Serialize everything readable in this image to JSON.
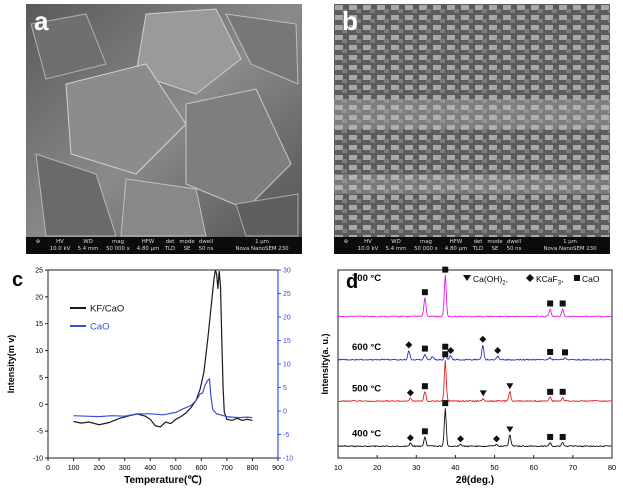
{
  "panels": {
    "a": {
      "letter": "a",
      "infobar": {
        "columns": [
          {
            "head": "HV",
            "val": "10.0 kV"
          },
          {
            "head": "WD",
            "val": "5.4 mm"
          },
          {
            "head": "mag",
            "val": "50 000 x"
          },
          {
            "head": "HFW",
            "val": "4.80 µm"
          },
          {
            "head": "det",
            "val": "TLD"
          },
          {
            "head": "mode",
            "val": "SE"
          },
          {
            "head": "dwell",
            "val": "50 ns"
          }
        ],
        "scale_label": "1 µm",
        "instrument": "Nova NanoSEM 230"
      }
    },
    "b": {
      "letter": "b",
      "infobar": {
        "columns": [
          {
            "head": "HV",
            "val": "10.0 kV"
          },
          {
            "head": "WD",
            "val": "5.4 mm"
          },
          {
            "head": "mag",
            "val": "50 000 x"
          },
          {
            "head": "HFW",
            "val": "4.80 µm"
          },
          {
            "head": "det",
            "val": "TLD"
          },
          {
            "head": "mode",
            "val": "SE"
          },
          {
            "head": "dwell",
            "val": "50 ns"
          }
        ],
        "scale_label": "1 µm",
        "instrument": "Nova NanoSEM 230"
      }
    }
  },
  "colors": {
    "kf_cao": "#1a1a1a",
    "cao": "#3a4fd8",
    "right_axis": "#3a4fd8",
    "xrd_700": "#e21be6",
    "xrd_600": "#2030d0",
    "xrd_500": "#e02020",
    "xrd_400": "#111111"
  },
  "chart_data": [
    {
      "panel": "c",
      "type": "line",
      "letter": "c",
      "xlabel": "Temperature(℃)",
      "ylabel": "Intensity(m v)",
      "xlim": [
        0,
        900
      ],
      "ylim_left": [
        -10,
        25
      ],
      "ylim_right": [
        -10,
        30
      ],
      "x_ticks": [
        "0",
        "100",
        "200",
        "300",
        "400",
        "500",
        "600",
        "700",
        "800",
        "900"
      ],
      "y_ticks_left": [
        "-10",
        "-5",
        "0",
        "5",
        "10",
        "15",
        "20",
        "25"
      ],
      "y_ticks_right": [
        "-10",
        "-5",
        "0",
        "5",
        "10",
        "15",
        "20",
        "25",
        "30"
      ],
      "legend": [
        "KF/CaO",
        "CaO"
      ],
      "series": [
        {
          "name": "KF/CaO",
          "axis": "left",
          "points": [
            [
              100,
              -3.2
            ],
            [
              130,
              -3.5
            ],
            [
              160,
              -3.3
            ],
            [
              200,
              -3.8
            ],
            [
              240,
              -3.4
            ],
            [
              280,
              -2.6
            ],
            [
              320,
              -2.1
            ],
            [
              350,
              -1.8
            ],
            [
              380,
              -2.2
            ],
            [
              400,
              -2.8
            ],
            [
              420,
              -4.0
            ],
            [
              440,
              -4.2
            ],
            [
              460,
              -3.3
            ],
            [
              480,
              -3.6
            ],
            [
              500,
              -2.8
            ],
            [
              520,
              -2.3
            ],
            [
              540,
              -1.6
            ],
            [
              560,
              -0.6
            ],
            [
              580,
              0.8
            ],
            [
              595,
              2.8
            ],
            [
              610,
              6.0
            ],
            [
              625,
              12.0
            ],
            [
              640,
              19.0
            ],
            [
              650,
              23.5
            ],
            [
              655,
              25.0
            ],
            [
              660,
              24.2
            ],
            [
              665,
              21.5
            ],
            [
              670,
              24.8
            ],
            [
              675,
              22.0
            ],
            [
              680,
              12.0
            ],
            [
              685,
              3.0
            ],
            [
              690,
              -1.5
            ],
            [
              700,
              -2.8
            ],
            [
              720,
              -3.0
            ],
            [
              740,
              -2.6
            ],
            [
              760,
              -3.0
            ],
            [
              780,
              -2.8
            ],
            [
              800,
              -3.0
            ]
          ]
        },
        {
          "name": "CaO",
          "axis": "right",
          "points": [
            [
              100,
              -1.0
            ],
            [
              150,
              -1.1
            ],
            [
              200,
              -1.2
            ],
            [
              250,
              -1.0
            ],
            [
              300,
              -1.1
            ],
            [
              350,
              -0.6
            ],
            [
              400,
              -0.6
            ],
            [
              450,
              -0.8
            ],
            [
              500,
              -0.3
            ],
            [
              530,
              0.5
            ],
            [
              560,
              1.2
            ],
            [
              580,
              2.3
            ],
            [
              595,
              3.6
            ],
            [
              605,
              3.8
            ],
            [
              615,
              5.6
            ],
            [
              625,
              6.5
            ],
            [
              632,
              6.8
            ],
            [
              638,
              3.0
            ],
            [
              645,
              0.3
            ],
            [
              660,
              -0.6
            ],
            [
              680,
              -0.9
            ],
            [
              700,
              -1.2
            ],
            [
              720,
              -1.3
            ],
            [
              750,
              -1.4
            ],
            [
              780,
              -1.3
            ],
            [
              800,
              -1.4
            ]
          ]
        }
      ]
    },
    {
      "panel": "d",
      "type": "line",
      "letter": "d",
      "xlabel": "2θ(deg.)",
      "ylabel": "Intensity(a. u.)",
      "xlim": [
        10,
        80
      ],
      "x_ticks": [
        "10",
        "20",
        "30",
        "40",
        "50",
        "60",
        "70",
        "80"
      ],
      "legend_text": {
        "caoh2": "Ca(OH)",
        "caoh2_sub": "2",
        "sep1": ",",
        "kcaf3": "KCaF",
        "kcaf3_sub": "3",
        "sep2": ",",
        "cao": "CaO"
      },
      "series": [
        {
          "name": "700 °C",
          "offset": 0.75,
          "peaks": [
            [
              32.2,
              0.1,
              "CaO"
            ],
            [
              37.4,
              0.22,
              "CaO"
            ],
            [
              53.9,
              0.0,
              ""
            ],
            [
              64.2,
              0.04,
              "CaO"
            ],
            [
              67.4,
              0.04,
              "CaO"
            ]
          ]
        },
        {
          "name": "600 °C",
          "offset": 0.52,
          "peaks": [
            [
              28.1,
              0.05,
              "KCaF3"
            ],
            [
              32.2,
              0.03,
              "CaO"
            ],
            [
              34.1,
              0.015,
              ""
            ],
            [
              37.4,
              0.04,
              "CaO"
            ],
            [
              38.8,
              0.02,
              "KCaF3"
            ],
            [
              47.0,
              0.08,
              "KCaF3"
            ],
            [
              50.8,
              0.02,
              "KCaF3"
            ],
            [
              64.2,
              0.012,
              "CaO"
            ],
            [
              68.0,
              0.01,
              "CaO"
            ]
          ]
        },
        {
          "name": "500 °C",
          "offset": 0.3,
          "peaks": [
            [
              28.5,
              0.015,
              "KCaF3"
            ],
            [
              32.2,
              0.05,
              "CaO"
            ],
            [
              37.4,
              0.22,
              "CaO"
            ],
            [
              47.1,
              0.012,
              "Ca(OH)2"
            ],
            [
              53.9,
              0.05,
              "Ca(OH)2"
            ],
            [
              64.2,
              0.02,
              "CaO"
            ],
            [
              67.4,
              0.02,
              "CaO"
            ]
          ]
        },
        {
          "name": "400 °C",
          "offset": 0.06,
          "peaks": [
            [
              28.5,
              0.015,
              "KCaF3"
            ],
            [
              32.2,
              0.05,
              "CaO"
            ],
            [
              37.4,
              0.2,
              "CaO"
            ],
            [
              41.3,
              0.01,
              "KCaF3"
            ],
            [
              50.5,
              0.01,
              "KCaF3"
            ],
            [
              53.9,
              0.06,
              "Ca(OH)2"
            ],
            [
              64.2,
              0.02,
              "CaO"
            ],
            [
              67.4,
              0.02,
              "CaO"
            ]
          ]
        }
      ]
    }
  ]
}
